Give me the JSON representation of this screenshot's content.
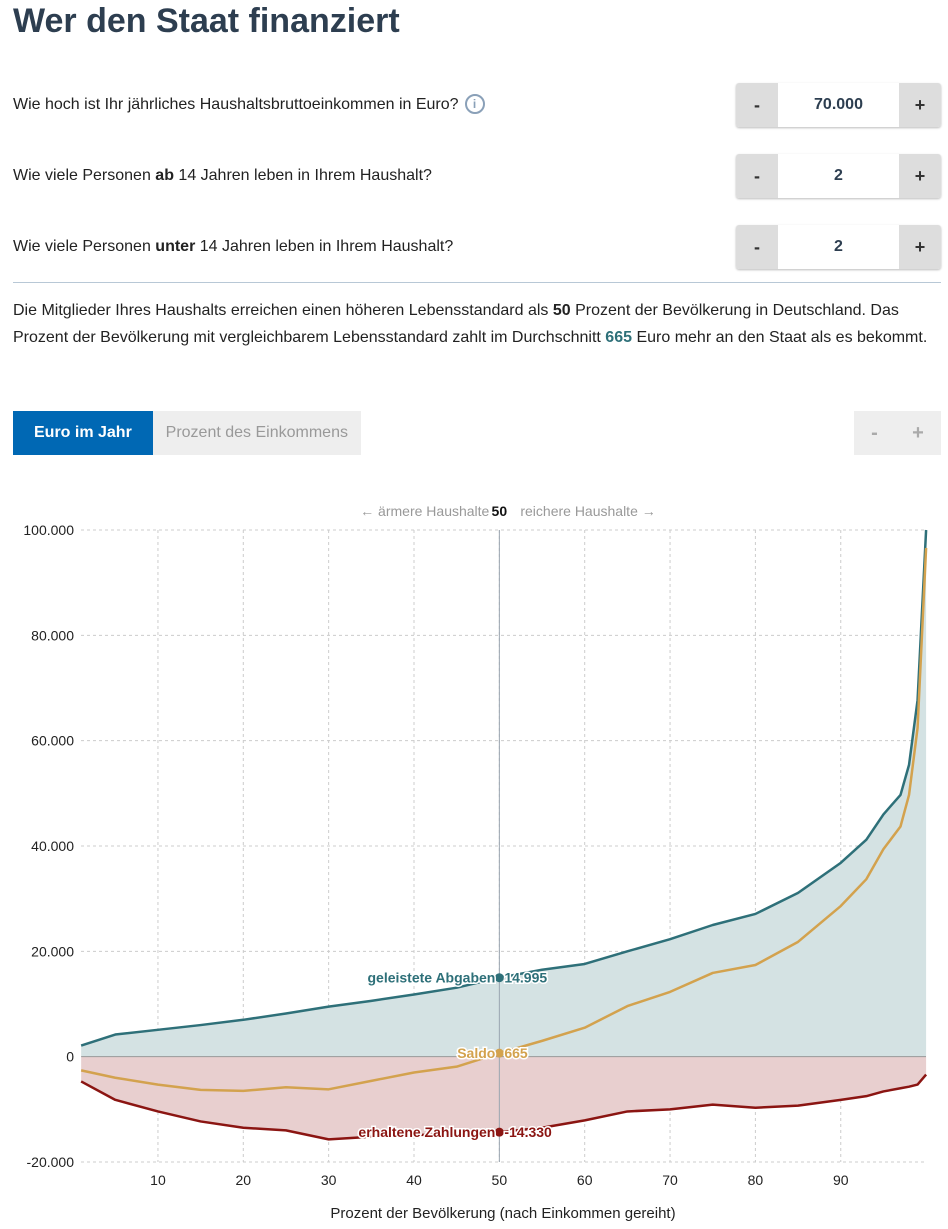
{
  "title": "Wer den Staat finanziert",
  "questions": [
    {
      "pre": "Wie hoch ist Ihr jährliches Haushaltsbruttoeinkommen in Euro?",
      "bold": "",
      "post": "",
      "value": "70.000",
      "info": "i"
    },
    {
      "pre": "Wie viele Personen ",
      "bold": "ab",
      "post": " 14 Jahren leben in Ihrem Haushalt?",
      "value": "2"
    },
    {
      "pre": "Wie viele Personen ",
      "bold": "unter",
      "post": " 14 Jahren leben in Ihrem Haushalt?",
      "value": "2"
    }
  ],
  "stepper": {
    "minus": "-",
    "plus": "+"
  },
  "summary": {
    "t1": "Die Mitglieder Ihres Haushalts erreichen einen höheren Lebensstandard als ",
    "pct": "50",
    "t2": " Prozent der Bevölkerung in Deutschland. Das Prozent der Bevölkerung mit vergleichbarem Lebensstandard zahlt im Durchschnitt ",
    "amount": "665",
    "t3": " Euro mehr an den Staat als es bekommt."
  },
  "tabs": {
    "euro": "Euro im Jahr",
    "percent": "Prozent des Einkommens"
  },
  "zoom": {
    "minus": "-",
    "plus": "+"
  },
  "colors": {
    "abgaben": "#2e7079",
    "saldo": "#d3a24e",
    "zahlungen": "#8b1512",
    "accent": "#0068b4"
  },
  "chart_data": {
    "type": "line",
    "top_label": {
      "left": "← ärmere Haushalte",
      "marker": "50",
      "right": "reichere Haushalte →"
    },
    "xlabel": "Prozent der Bevölkerung (nach Einkommen gereiht)",
    "xlim": [
      0,
      100
    ],
    "ylim": [
      -20000,
      100000
    ],
    "xticks": [
      "10",
      "20",
      "30",
      "40",
      "50",
      "60",
      "70",
      "80",
      "90"
    ],
    "yticks": [
      {
        "v": 100000,
        "l": "100.000"
      },
      {
        "v": 80000,
        "l": "80.000"
      },
      {
        "v": 60000,
        "l": "60.000"
      },
      {
        "v": 40000,
        "l": "40.000"
      },
      {
        "v": 20000,
        "l": "20.000"
      },
      {
        "v": 0,
        "l": "0"
      },
      {
        "v": -20000,
        "l": "-20.000"
      }
    ],
    "grid": true,
    "x": [
      1,
      5,
      10,
      15,
      20,
      25,
      30,
      35,
      40,
      45,
      50,
      55,
      60,
      65,
      70,
      75,
      80,
      85,
      90,
      93,
      95,
      97,
      98,
      99,
      100
    ],
    "series": [
      {
        "name": "geleistete Abgaben",
        "key": "abgaben",
        "values": [
          2100,
          4200,
          5100,
          6000,
          7000,
          8200,
          9500,
          10600,
          11800,
          13100,
          14995,
          16500,
          17600,
          20000,
          22300,
          25000,
          27100,
          31100,
          36800,
          41200,
          46000,
          49700,
          55400,
          67700,
          100000
        ]
      },
      {
        "name": "Saldo",
        "key": "saldo",
        "values": [
          -2600,
          -4000,
          -5300,
          -6300,
          -6500,
          -5800,
          -6200,
          -4600,
          -3000,
          -1900,
          665,
          3000,
          5500,
          9600,
          12300,
          15900,
          17400,
          21800,
          28600,
          33700,
          39400,
          43700,
          49700,
          62400,
          96600
        ]
      },
      {
        "name": "erhaltene Zahlungen",
        "key": "zahlungen",
        "values": [
          -4700,
          -8200,
          -10400,
          -12300,
          -13500,
          -14000,
          -15700,
          -15200,
          -14800,
          -15000,
          -14330,
          -13500,
          -12100,
          -10400,
          -10000,
          -9100,
          -9700,
          -9300,
          -8200,
          -7500,
          -6600,
          -6000,
          -5700,
          -5300,
          -3400
        ]
      }
    ],
    "marker_x": 50,
    "annotations": [
      {
        "key": "abgaben",
        "label": "geleistete Abgaben",
        "value": 14995,
        "text": "14.995"
      },
      {
        "key": "saldo",
        "label": "Saldo",
        "value": 665,
        "text": "665"
      },
      {
        "key": "zahlungen",
        "label": "erhaltene Zahlungen",
        "value": -14330,
        "text": "-14.330"
      }
    ]
  }
}
